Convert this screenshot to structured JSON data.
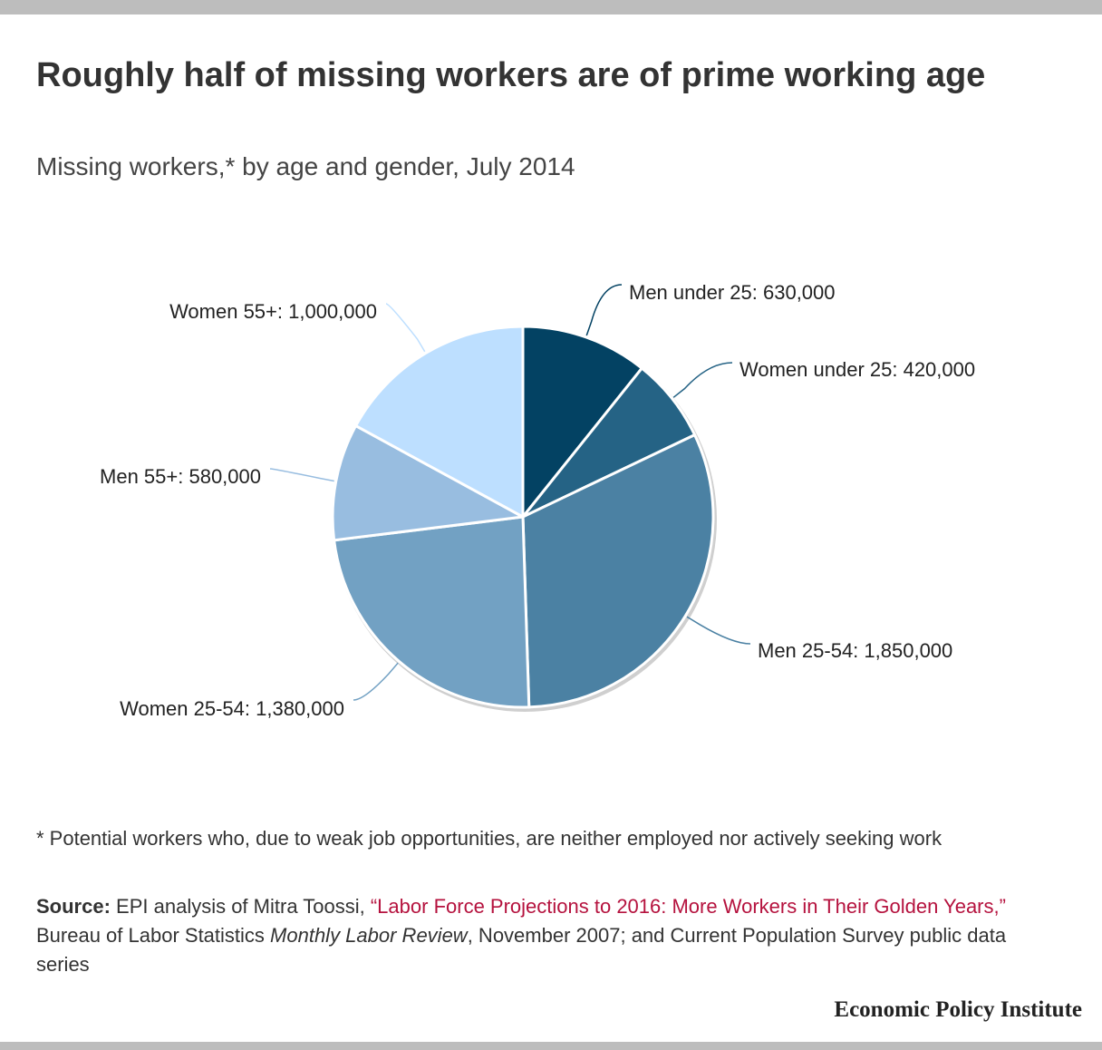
{
  "header": {
    "title": "Roughly half of missing workers are of prime working age",
    "subtitle": "Missing workers,* by age and gender, July 2014"
  },
  "chart_data": {
    "type": "pie",
    "title": "Roughly half of missing workers are of prime working age",
    "subtitle": "Missing workers,* by age and gender, July 2014",
    "slices": [
      {
        "label": "Men under 25",
        "value": 630000,
        "display": "Men under 25: 630,000",
        "color": "#034263"
      },
      {
        "label": "Women under 25",
        "value": 420000,
        "display": "Women under 25: 420,000",
        "color": "#256385"
      },
      {
        "label": "Men 25-54",
        "value": 1850000,
        "display": "Men 25-54: 1,850,000",
        "color": "#4b81a3"
      },
      {
        "label": "Women 25-54",
        "value": 1380000,
        "display": "Women 25-54: 1,380,000",
        "color": "#72a1c3"
      },
      {
        "label": "Men 55+",
        "value": 580000,
        "display": "Men 55+: 580,000",
        "color": "#98bde0"
      },
      {
        "label": "Women 55+",
        "value": 1000000,
        "display": "Women 55+: 1,000,000",
        "color": "#bddfff"
      }
    ]
  },
  "footer": {
    "footnote": "* Potential workers who, due to weak job opportunities, are neither employed nor actively seeking work",
    "source_label": "Source:",
    "source_pre": " EPI analysis of Mitra Toossi, ",
    "source_link": "“Labor Force Projections to 2016: More Workers in Their Golden Years,”",
    "source_mid": " Bureau of Labor Statistics ",
    "source_italic": "Monthly Labor Review",
    "source_post": ", November 2007; and Current Population Survey public data series",
    "brand": "Economic Policy Institute"
  },
  "colors": {
    "source_link": "#b5123e",
    "frame_bar": "#bdbdbd"
  }
}
